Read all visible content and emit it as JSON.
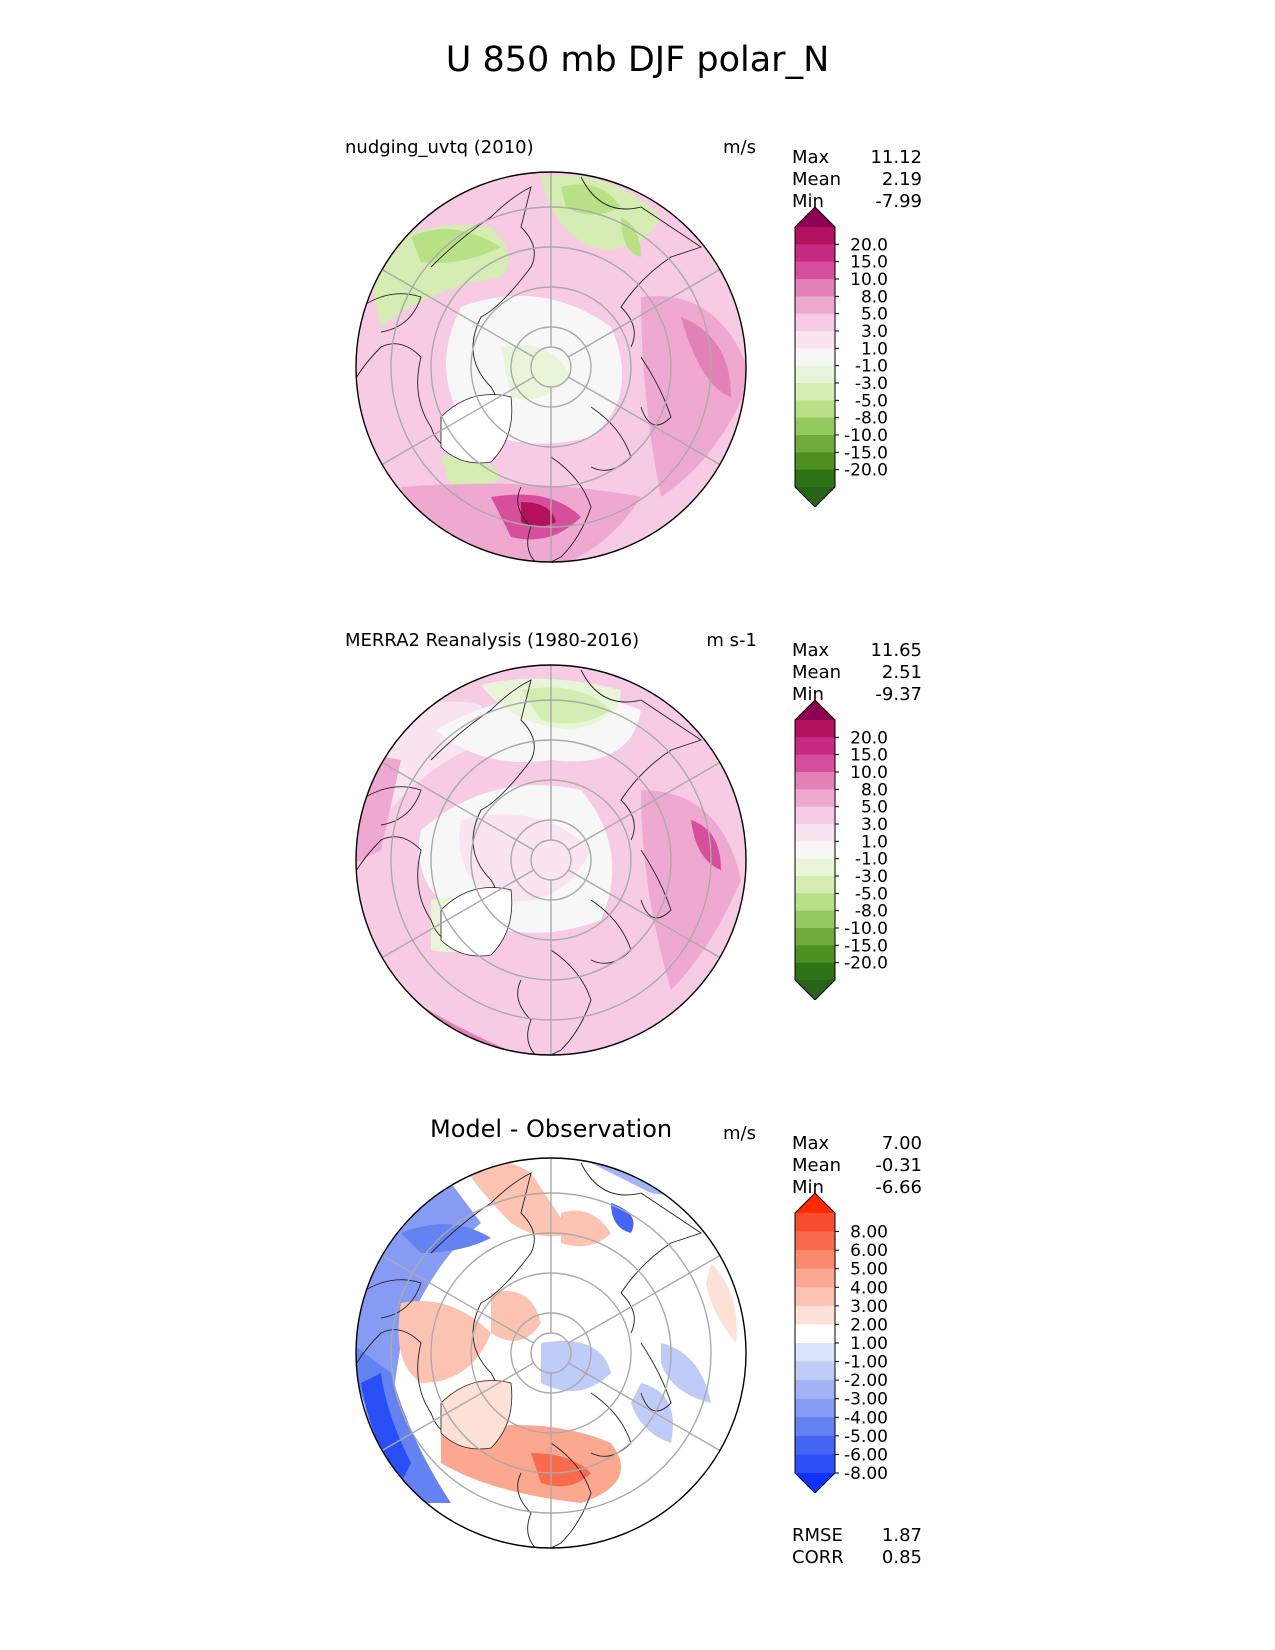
{
  "title": "U 850 mb DJF polar_N",
  "panels": [
    {
      "title": "nudging_uvtq (2010)",
      "units": "m/s",
      "stats": {
        "max_label": "Max",
        "max": "11.12",
        "mean_label": "Mean",
        "mean": "2.19",
        "min_label": "Min",
        "min": "-7.99"
      },
      "colorbar": {
        "labels": [
          "20.0",
          "15.0",
          "10.0",
          "8.0",
          "5.0",
          "3.0",
          "1.0",
          "-1.0",
          "-3.0",
          "-5.0",
          "-8.0",
          "-10.0",
          "-15.0",
          "-20.0"
        ],
        "colors": [
          "#8e0152",
          "#b3105f",
          "#c72b80",
          "#d74e9c",
          "#e380b6",
          "#efa9d1",
          "#f6cbe3",
          "#fae4f0",
          "#f7f7f7",
          "#e9f5d8",
          "#d5edb3",
          "#b8e186",
          "#93c95e",
          "#6eaa3c",
          "#4d9221",
          "#2e7218",
          "#276419"
        ]
      }
    },
    {
      "title": "MERRA2 Reanalysis (1980-2016)",
      "units": "m s-1",
      "stats": {
        "max_label": "Max",
        "max": "11.65",
        "mean_label": "Mean",
        "mean": "2.51",
        "min_label": "Min",
        "min": "-9.37"
      },
      "colorbar": {
        "labels": [
          "20.0",
          "15.0",
          "10.0",
          "8.0",
          "5.0",
          "3.0",
          "1.0",
          "-1.0",
          "-3.0",
          "-5.0",
          "-8.0",
          "-10.0",
          "-15.0",
          "-20.0"
        ],
        "colors": [
          "#8e0152",
          "#b3105f",
          "#c72b80",
          "#d74e9c",
          "#e380b6",
          "#efa9d1",
          "#f6cbe3",
          "#fae4f0",
          "#f7f7f7",
          "#e9f5d8",
          "#d5edb3",
          "#b8e186",
          "#93c95e",
          "#6eaa3c",
          "#4d9221",
          "#2e7218",
          "#276419"
        ]
      }
    },
    {
      "title": "Model - Observation",
      "units": "m/s",
      "stats": {
        "max_label": "Max",
        "max": "7.00",
        "mean_label": "Mean",
        "mean": "-0.31",
        "min_label": "Min",
        "min": "-6.66"
      },
      "colorbar": {
        "labels": [
          "8.00",
          "6.00",
          "5.00",
          "4.00",
          "3.00",
          "2.00",
          "1.00",
          "-1.00",
          "-2.00",
          "-3.00",
          "-4.00",
          "-5.00",
          "-6.00",
          "-8.00"
        ],
        "colors": [
          "#ff2a00",
          "#f64d2f",
          "#fa6a4c",
          "#fb8a6c",
          "#fca790",
          "#fdc3b2",
          "#fde0d6",
          "#ffffff",
          "#dbe2fb",
          "#c0ccf8",
          "#a3b3f6",
          "#869bf4",
          "#6582f2",
          "#4566f5",
          "#2b4ff7",
          "#0c33ff"
        ]
      }
    }
  ],
  "footer_stats": {
    "rmse_label": "RMSE",
    "rmse": "1.87",
    "corr_label": "CORR",
    "corr": "0.85"
  },
  "chart_data": [
    {
      "type": "heatmap",
      "title": "nudging_uvtq (2010)",
      "units": "m/s",
      "projection": "north polar stereographic",
      "levels": [
        -20,
        -15,
        -10,
        -8,
        -5,
        -3,
        -1,
        1,
        3,
        5,
        8,
        10,
        15,
        20
      ],
      "extend": "both",
      "max": 11.12,
      "mean": 2.19,
      "min": -7.99
    },
    {
      "type": "heatmap",
      "title": "MERRA2 Reanalysis (1980-2016)",
      "units": "m s-1",
      "projection": "north polar stereographic",
      "levels": [
        -20,
        -15,
        -10,
        -8,
        -5,
        -3,
        -1,
        1,
        3,
        5,
        8,
        10,
        15,
        20
      ],
      "extend": "both",
      "max": 11.65,
      "mean": 2.51,
      "min": -9.37
    },
    {
      "type": "heatmap",
      "title": "Model - Observation",
      "units": "m/s",
      "projection": "north polar stereographic",
      "levels": [
        -8,
        -6,
        -5,
        -4,
        -3,
        -2,
        -1,
        1,
        2,
        3,
        4,
        5,
        6,
        8
      ],
      "extend": "both",
      "max": 7.0,
      "mean": -0.31,
      "min": -6.66,
      "rmse": 1.87,
      "corr": 0.85
    }
  ]
}
